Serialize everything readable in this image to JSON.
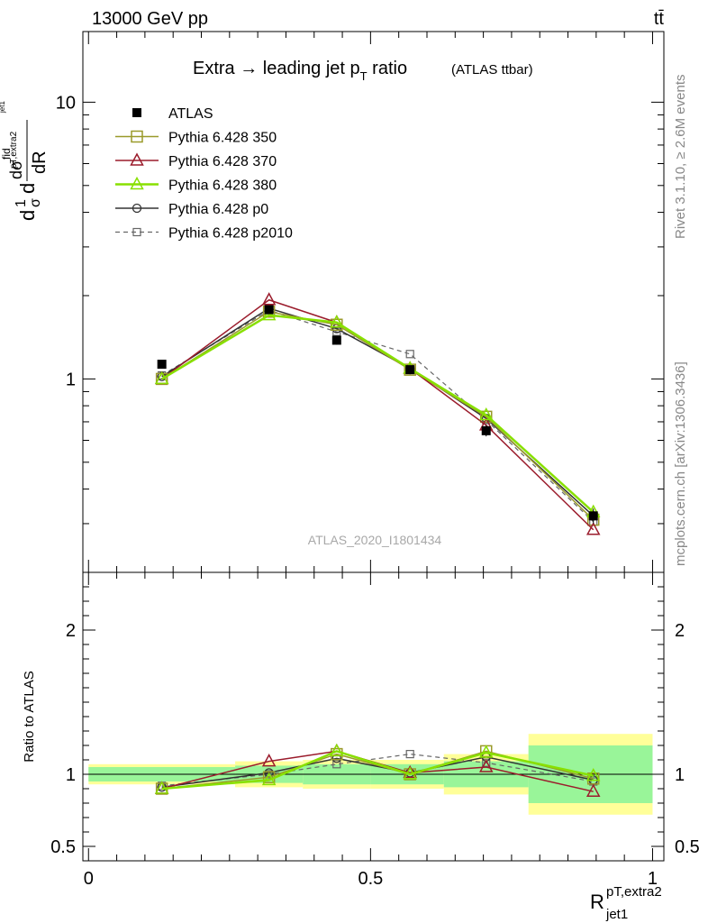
{
  "header": {
    "left": "13000 GeV pp",
    "right": "tt̄"
  },
  "side_text": {
    "rivet": "Rivet 3.1.10, ≥ 2.6M events",
    "site": "mcplots.cern.ch [arXiv:1306.3436]"
  },
  "colors": {
    "ATLAS": "#000000",
    "Pythia 6.428 350": "#9a9a2a",
    "Pythia 6.428 370": "#9b1c2c",
    "Pythia 6.428 380": "#88e000",
    "Pythia 6.428 p0": "#333333",
    "Pythia 6.428 p2010": "#666666",
    "band_inner": "#99f599",
    "band_outer": "#ffff99"
  },
  "chart_data": [
    {
      "type": "line",
      "title": "Extra → leading jet p_T ratio (ATLAS ttbar)",
      "title_main": "Extra → leading jet p",
      "title_sub": "T",
      "title_tail": " ratio",
      "title_note": "(ATLAS ttbar)",
      "watermark": "ATLAS_2020_I1801434",
      "ylabel": "dσ^fid/dR^pT,extra2_jet1 · 1/σ",
      "ylabel_parts": {
        "d": "d",
        "one": "1",
        "sigma": "σ",
        "dsigma": "dσ",
        "fid": "fid",
        "dR": "dR",
        "sub": "pT,extra2",
        "subsub": "jet1"
      },
      "y_scale": "log",
      "ylim": [
        0.2,
        18
      ],
      "xlim": [
        -0.01,
        1.02
      ],
      "y_tick_labels": [
        {
          "v": 1,
          "t": "1"
        },
        {
          "v": 10,
          "t": "10"
        }
      ],
      "legend_position": "top-left",
      "x": [
        0.13,
        0.32,
        0.44,
        0.57,
        0.705,
        0.895
      ],
      "series": [
        {
          "name": "ATLAS",
          "marker": "filled-square",
          "line": "none",
          "values": [
            1.13,
            1.78,
            1.38,
            1.08,
            0.65,
            0.32
          ],
          "err": [
            0.04,
            0.06,
            0.05,
            0.04,
            0.03,
            0.02
          ]
        },
        {
          "name": "Pythia 6.428 350",
          "marker": "open-square",
          "line": "solid",
          "values": [
            1.0,
            1.75,
            1.57,
            1.08,
            0.73,
            0.31
          ]
        },
        {
          "name": "Pythia 6.428 370",
          "marker": "open-triangle",
          "line": "solid",
          "values": [
            1.0,
            1.93,
            1.6,
            1.09,
            0.68,
            0.285
          ]
        },
        {
          "name": "Pythia 6.428 380",
          "marker": "open-triangle",
          "line": "solid-thick",
          "values": [
            1.0,
            1.7,
            1.6,
            1.09,
            0.74,
            0.33
          ]
        },
        {
          "name": "Pythia 6.428 p0",
          "marker": "open-circle",
          "line": "solid",
          "values": [
            1.02,
            1.8,
            1.52,
            1.09,
            0.72,
            0.32
          ]
        },
        {
          "name": "Pythia 6.428 p2010",
          "marker": "open-square-small",
          "line": "dashed",
          "values": [
            1.03,
            1.77,
            1.48,
            1.23,
            0.71,
            0.305
          ]
        }
      ]
    },
    {
      "type": "line",
      "ylabel": "Ratio to ATLAS",
      "xlabel": "R",
      "xlabel_sup": "pT,extra2",
      "xlabel_sub": "jet1",
      "ylim": [
        0.4,
        2.4
      ],
      "xlim": [
        -0.01,
        1.02
      ],
      "x_tick_labels": [
        {
          "v": 0,
          "t": "0"
        },
        {
          "v": 0.5,
          "t": "0.5"
        },
        {
          "v": 1,
          "t": "1"
        }
      ],
      "y_tick_labels": [
        {
          "v": 0.5,
          "t": "0.5"
        },
        {
          "v": 1,
          "t": "1"
        },
        {
          "v": 2,
          "t": "2"
        }
      ],
      "bands": {
        "edges": [
          0.0,
          0.26,
          0.38,
          0.5,
          0.63,
          0.78,
          1.0
        ],
        "inner": [
          0.05,
          0.06,
          0.07,
          0.07,
          0.09,
          0.2
        ],
        "outer": [
          0.07,
          0.09,
          0.1,
          0.1,
          0.14,
          0.28
        ]
      },
      "x": [
        0.13,
        0.32,
        0.44,
        0.57,
        0.705,
        0.895
      ],
      "series": [
        {
          "name": "Pythia 6.428 350",
          "values": [
            0.9,
            0.98,
            1.14,
            1.0,
            1.16,
            0.97
          ]
        },
        {
          "name": "Pythia 6.428 370",
          "values": [
            0.9,
            1.09,
            1.16,
            1.01,
            1.05,
            0.88
          ]
        },
        {
          "name": "Pythia 6.428 380",
          "values": [
            0.9,
            0.96,
            1.16,
            1.0,
            1.15,
            0.99
          ]
        },
        {
          "name": "Pythia 6.428 p0",
          "values": [
            0.91,
            1.01,
            1.11,
            1.01,
            1.12,
            0.96
          ]
        },
        {
          "name": "Pythia 6.428 p2010",
          "values": [
            0.92,
            1.0,
            1.07,
            1.14,
            1.08,
            0.95
          ]
        }
      ]
    }
  ]
}
